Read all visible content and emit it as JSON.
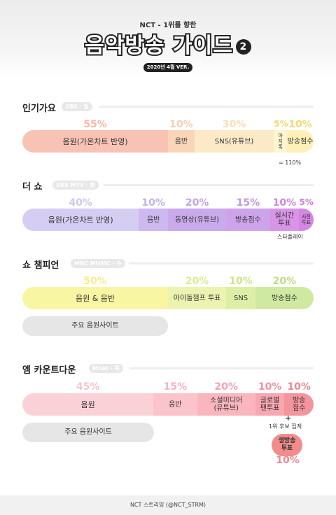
{
  "header": {
    "subtitle": "NCT - 1위를 향한",
    "title": "음악방송 가이드",
    "title_number": "2",
    "version": "2020년 4월 VER."
  },
  "sections": [
    {
      "title": "인기가요",
      "tag": "SBS · 일",
      "percents": [
        "55%",
        "10%",
        "30%",
        "5%",
        "10%"
      ],
      "segments": [
        "음원(가온차트 반영)",
        "음반",
        "SNS(유튜브)",
        "아\n지\n톡",
        "방송점수"
      ],
      "shares": [
        55,
        10,
        30,
        5,
        10
      ],
      "colors": [
        "#f8c3b5",
        "#f9d6ba",
        "#fbe9c8",
        "#fdf7cf",
        "#fdf0b8"
      ],
      "percent_colors": [
        "#f7b9a3",
        "#f9ceb0",
        "#f9deb8",
        "#f5d872",
        "#f5d872"
      ],
      "note": "= 110%"
    },
    {
      "title": "더 쇼",
      "tag": "SBS MTV · 화",
      "percents": [
        "40%",
        "10%",
        "20%",
        "15%",
        "10%",
        "5%"
      ],
      "segments": [
        "음원(가온차트 반영)",
        "음반",
        "동영상(유튜브)",
        "방송점수",
        "실시간\n투표",
        "사전\n투표"
      ],
      "shares": [
        40,
        10,
        20,
        15,
        10,
        5
      ],
      "colors": [
        "#d6cdf3",
        "#cdb9ef",
        "#c9abec",
        "#cda3ea",
        "#d894e6",
        "#d585e4"
      ],
      "percent_colors": [
        "#cfc6ef",
        "#c3b2ea",
        "#bfa6e6",
        "#c298e3",
        "#cf88e0",
        "#cb7ada"
      ],
      "note": "스타플레이"
    },
    {
      "title": "쇼 챔피언",
      "tag": "MBC MUSIC · 수",
      "percents": [
        "50%",
        "20%",
        "10%",
        "20%"
      ],
      "segments": [
        "음원 & 음반",
        "아이돌챔프 투표",
        "SNS",
        "방송점수"
      ],
      "shares": [
        50,
        20,
        10,
        20
      ],
      "colors": [
        "#f8f5a3",
        "#ecf3b0",
        "#ddefa6",
        "#cfeaa0"
      ],
      "percent_colors": [
        "#f3ee8a",
        "#dcec8e",
        "#cde486",
        "#bfdd84"
      ],
      "pill": "주요 음원사이트"
    },
    {
      "title": "엠 카운트다운",
      "tag": "Mnet · 목",
      "percents": [
        "45%",
        "15%",
        "20%",
        "10%",
        "10%"
      ],
      "segments": [
        "음원",
        "음반",
        "소셜미디어\n(유튜브)",
        "글로벌\n팬투표",
        "방송\n점수"
      ],
      "shares": [
        45,
        15,
        20,
        10,
        10
      ],
      "colors": [
        "#fbd1d8",
        "#fbc4cc",
        "#f9b6bf",
        "#f8a7b0",
        "#f4949c"
      ],
      "percent_colors": [
        "#f8c4cc",
        "#f6b3bc",
        "#f4a3ad",
        "#f193a0",
        "#ee8792"
      ],
      "pill": "주요 음원사이트",
      "plus": "+",
      "note": "1위 후보 집계",
      "circle": "생방송\n투표",
      "circle_percent": "10%",
      "circle_percent_color": "#ee8792"
    }
  ],
  "footer": "NCT 스트리밍 (@NCT_STRM)"
}
